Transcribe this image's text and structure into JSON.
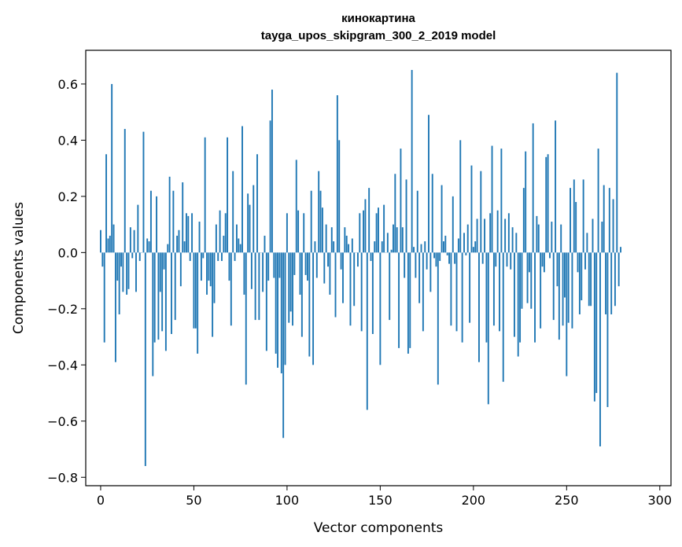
{
  "chart_data": {
    "type": "bar",
    "title": "кинокартина",
    "subtitle": "tayga_upos_skipgram_300_2_2019 model",
    "xlabel": "Vector components",
    "ylabel": "Components values",
    "xlim": [
      -8,
      306
    ],
    "ylim": [
      -0.83,
      0.72
    ],
    "xticks": [
      0,
      50,
      100,
      150,
      200,
      250,
      300
    ],
    "yticks": [
      -0.8,
      -0.6,
      -0.4,
      -0.2,
      0.0,
      0.2,
      0.4,
      0.6
    ],
    "ytick_labels": [
      "−0.8",
      "−0.6",
      "−0.4",
      "−0.2",
      "0.0",
      "0.2",
      "0.4",
      "0.6"
    ],
    "bar_color": "#1f77b4",
    "grid": false,
    "values": [
      0.08,
      -0.05,
      -0.32,
      0.35,
      0.05,
      0.06,
      0.6,
      0.1,
      -0.39,
      -0.1,
      -0.22,
      -0.05,
      -0.14,
      0.44,
      -0.15,
      -0.13,
      0.09,
      -0.02,
      0.08,
      -0.14,
      0.17,
      -0.03,
      0.0,
      0.43,
      -0.76,
      0.05,
      0.04,
      0.22,
      -0.44,
      -0.32,
      0.2,
      -0.31,
      -0.14,
      -0.28,
      -0.06,
      -0.35,
      0.03,
      0.27,
      -0.29,
      0.22,
      -0.24,
      0.06,
      0.08,
      -0.12,
      0.25,
      0.04,
      0.14,
      0.13,
      -0.03,
      0.14,
      -0.27,
      -0.27,
      -0.36,
      0.11,
      -0.1,
      -0.02,
      0.41,
      -0.15,
      -0.1,
      -0.12,
      -0.3,
      -0.18,
      0.1,
      -0.03,
      0.15,
      -0.03,
      0.06,
      0.14,
      0.41,
      -0.1,
      -0.26,
      0.29,
      -0.03,
      0.1,
      0.05,
      0.03,
      0.45,
      -0.15,
      -0.47,
      0.21,
      0.17,
      -0.13,
      0.24,
      -0.24,
      0.35,
      -0.24,
      0.0,
      -0.14,
      0.06,
      -0.35,
      -0.1,
      0.47,
      0.58,
      -0.09,
      -0.36,
      -0.41,
      -0.09,
      -0.43,
      -0.66,
      -0.4,
      0.14,
      -0.25,
      -0.21,
      -0.26,
      -0.08,
      0.33,
      0.15,
      -0.15,
      -0.3,
      0.14,
      -0.08,
      -0.1,
      -0.37,
      0.22,
      -0.4,
      0.04,
      -0.09,
      0.29,
      0.22,
      0.16,
      -0.11,
      0.1,
      -0.05,
      -0.15,
      0.09,
      0.04,
      -0.23,
      0.56,
      0.4,
      -0.06,
      -0.18,
      0.09,
      0.06,
      0.03,
      -0.26,
      0.05,
      -0.19,
      0.0,
      -0.05,
      0.14,
      -0.28,
      0.15,
      0.19,
      -0.56,
      0.23,
      -0.03,
      -0.29,
      0.04,
      0.14,
      0.16,
      -0.4,
      0.04,
      0.17,
      0.0,
      0.07,
      -0.24,
      0.01,
      0.1,
      0.28,
      0.09,
      -0.34,
      0.37,
      0.09,
      -0.09,
      0.26,
      -0.36,
      -0.34,
      0.65,
      0.02,
      -0.09,
      0.22,
      -0.18,
      0.03,
      -0.28,
      0.04,
      -0.06,
      0.49,
      -0.14,
      0.28,
      -0.02,
      -0.05,
      -0.47,
      -0.03,
      0.24,
      0.04,
      0.06,
      -0.01,
      -0.04,
      -0.26,
      0.2,
      -0.04,
      -0.28,
      0.05,
      0.4,
      -0.32,
      0.07,
      -0.01,
      0.1,
      -0.25,
      0.31,
      0.02,
      0.04,
      0.12,
      -0.39,
      0.29,
      -0.04,
      0.12,
      -0.32,
      -0.54,
      0.14,
      0.38,
      -0.26,
      -0.05,
      0.15,
      -0.28,
      0.37,
      -0.46,
      0.12,
      -0.05,
      0.14,
      -0.06,
      0.09,
      -0.3,
      0.07,
      -0.37,
      -0.32,
      -0.2,
      0.23,
      0.36,
      -0.18,
      -0.07,
      -0.2,
      0.46,
      -0.32,
      0.13,
      0.1,
      -0.27,
      -0.05,
      -0.07,
      0.34,
      0.35,
      -0.02,
      0.11,
      -0.24,
      0.47,
      -0.12,
      -0.31,
      0.1,
      -0.26,
      -0.16,
      -0.44,
      -0.25,
      0.23,
      -0.27,
      0.26,
      0.18,
      -0.07,
      -0.22,
      -0.17,
      0.26,
      -0.06,
      0.07,
      -0.19,
      -0.19,
      0.12,
      -0.53,
      -0.5,
      0.37,
      -0.69,
      0.11,
      0.24,
      -0.22,
      -0.55,
      0.23,
      -0.22,
      0.19,
      -0.19,
      0.64,
      -0.12,
      0.02
    ]
  }
}
